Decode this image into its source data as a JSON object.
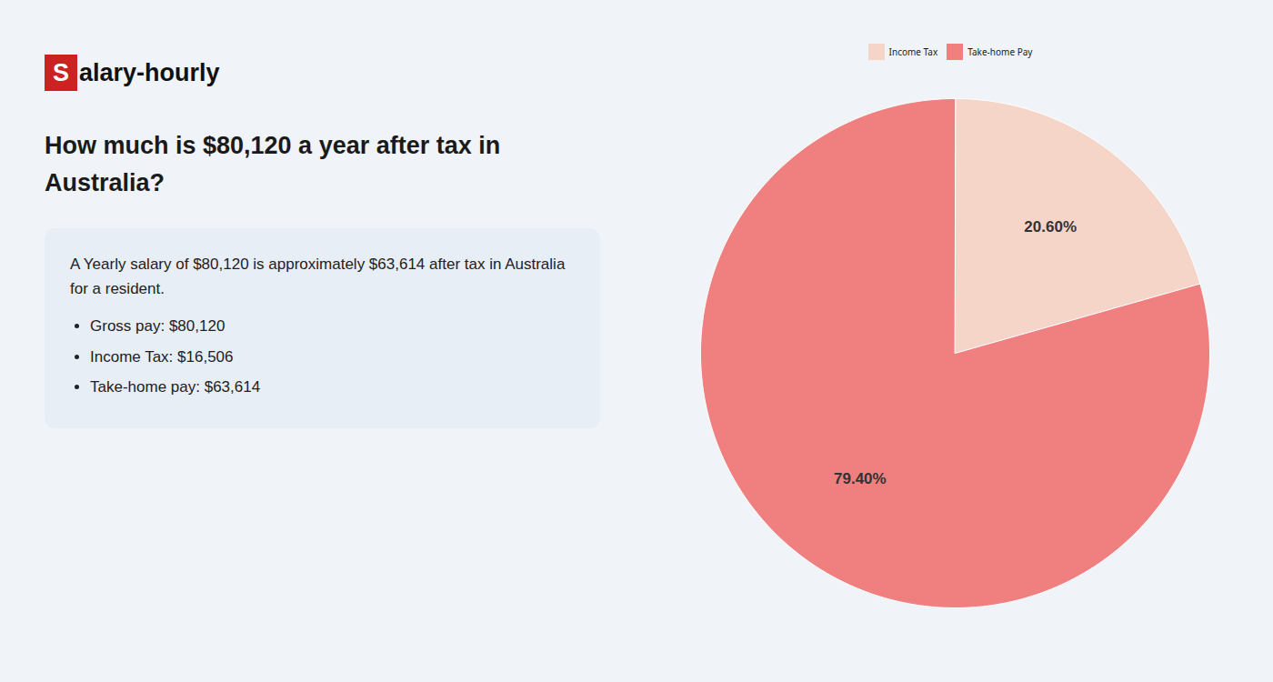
{
  "chart_data": {
    "type": "pie",
    "title": "How much is $80,120 a year after tax in Australia?",
    "annotations": [
      "Salary-hourly",
      "A Yearly salary of $80,120 is approximately $63,614 after tax in Australia for a resident.",
      "Gross pay: $80,120",
      "Income Tax: $16,506",
      "Take-home pay: $63,614"
    ],
    "categories": [
      "Income Tax",
      "Take-home Pay"
    ],
    "values": [
      20.6,
      79.4
    ],
    "value_labels": [
      "20.60%",
      "79.40%"
    ],
    "colors": [
      "#f5d5c8",
      "#f08080"
    ],
    "data_labels": true,
    "legend": "top"
  }
}
